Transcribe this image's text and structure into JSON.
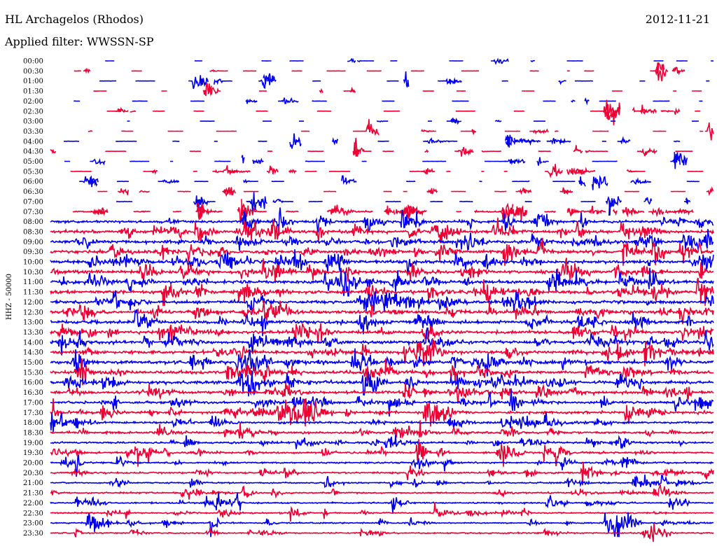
{
  "chart_data": {
    "type": "line",
    "title": "HL Archagelos (Rhodos)",
    "date": "2012-11-21",
    "filter_label": "Applied filter: WWSSN-SP",
    "ylabel": "HHZ - 50000",
    "xlabel": "",
    "series_colors": [
      "#0000ee",
      "#ee0033"
    ],
    "row_labels": [
      "00:00",
      "00:30",
      "01:00",
      "01:30",
      "02:00",
      "02:30",
      "03:00",
      "03:30",
      "04:00",
      "04:30",
      "05:00",
      "05:30",
      "06:00",
      "06:30",
      "07:00",
      "07:30",
      "08:00",
      "08:30",
      "09:00",
      "09:30",
      "10:00",
      "10:30",
      "11:00",
      "11:30",
      "12:00",
      "12:30",
      "13:00",
      "13:30",
      "14:00",
      "14:30",
      "15:00",
      "15:30",
      "16:00",
      "16:30",
      "17:00",
      "17:30",
      "18:00",
      "18:30",
      "19:00",
      "19:30",
      "20:00",
      "20:30",
      "21:00",
      "21:30",
      "22:00",
      "22:30",
      "23:00",
      "23:30"
    ],
    "row_activity": [
      0.15,
      0.15,
      0.2,
      0.2,
      0.15,
      0.2,
      0.1,
      0.15,
      0.25,
      0.3,
      0.35,
      0.35,
      0.35,
      0.35,
      0.4,
      0.7,
      1,
      1,
      1,
      1,
      1,
      1,
      1,
      1,
      1,
      1,
      1,
      1,
      1,
      1,
      1,
      1,
      1,
      1,
      0.85,
      0.85,
      0.8,
      0.8,
      0.7,
      0.65,
      0.6,
      0.55,
      0.5,
      0.5,
      0.5,
      0.5,
      0.45,
      0.35
    ],
    "row_noise": [
      0.2,
      0.2,
      0.2,
      0.2,
      0.2,
      0.2,
      0.2,
      0.2,
      0.3,
      0.3,
      0.3,
      0.3,
      0.3,
      0.3,
      0.4,
      1.2,
      2.2,
      2.5,
      2.6,
      2.6,
      2.6,
      2.6,
      2.6,
      2.6,
      2.6,
      2.6,
      2.6,
      2.6,
      2.6,
      2.6,
      2.6,
      2.6,
      2.4,
      2.2,
      2,
      2,
      1.8,
      1.8,
      1.6,
      1.5,
      1.4,
      1.3,
      1.2,
      1.2,
      1.2,
      1.1,
      1.1,
      1
    ],
    "row_dropout": [
      0.85,
      0.8,
      0.75,
      0.8,
      0.8,
      0.7,
      0.85,
      0.75,
      0.7,
      0.7,
      0.65,
      0.7,
      0.7,
      0.7,
      0.7,
      0.3,
      0,
      0,
      0,
      0,
      0,
      0,
      0,
      0,
      0,
      0,
      0,
      0,
      0,
      0,
      0,
      0,
      0,
      0,
      0,
      0,
      0,
      0,
      0,
      0,
      0,
      0,
      0,
      0,
      0,
      0,
      0,
      0
    ],
    "notable_events": [
      {
        "row": 46,
        "time_min": 25.5,
        "amplitude": 16
      },
      {
        "row": 15,
        "time_min": 20.5,
        "amplitude": 10
      },
      {
        "row": 8,
        "time_min": 10.8,
        "amplitude": 9
      },
      {
        "row": 2,
        "time_min": 6.5,
        "amplitude": 8
      },
      {
        "row": 20,
        "time_min": 7.7,
        "amplitude": 12
      },
      {
        "row": 27,
        "time_min": 11.1,
        "amplitude": 12
      }
    ],
    "x_minutes_per_row": 30
  }
}
